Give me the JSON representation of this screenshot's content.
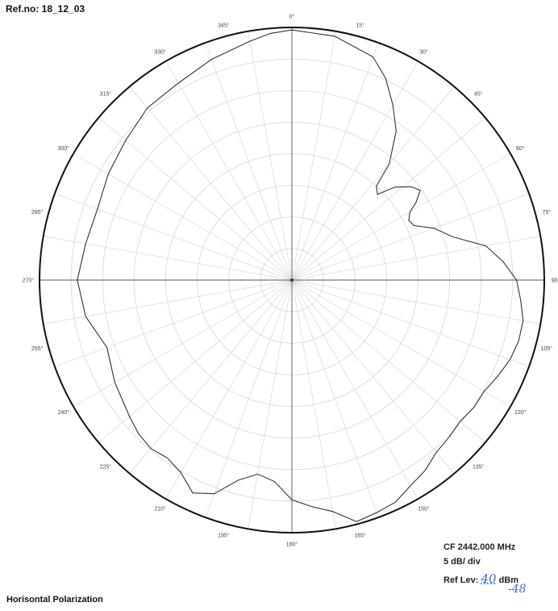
{
  "header": {
    "ref_label": "Ref.no: 18_12_03"
  },
  "info": {
    "cf": "CF  2442.000 MHz",
    "scale": "5 dB/ div",
    "ref_lev_label": "Ref Lev:",
    "ref_lev_value": "40",
    "ref_lev_unit": "dBm",
    "handwritten_note": "-48"
  },
  "footer": {
    "polarization": "Horisontal Polarization"
  },
  "chart_data": {
    "type": "polar",
    "title": "",
    "angle_unit": "deg",
    "scale_db_per_div": 5,
    "divisions": 8,
    "angle_ticks": [
      "0°",
      "15°",
      "30°",
      "45°",
      "60°",
      "75°",
      "90°",
      "105°",
      "120°",
      "135°",
      "150°",
      "165°",
      "180°",
      "195°",
      "210°",
      "225°",
      "240°",
      "255°",
      "270°",
      "285°",
      "300°",
      "315°",
      "330°",
      "345°"
    ],
    "series": [
      {
        "angles": [
          0,
          10,
          20,
          25,
          30,
          35,
          40,
          42,
          45,
          48,
          52,
          55,
          58,
          60,
          63,
          66,
          70,
          75,
          80,
          85,
          90,
          95,
          100,
          105,
          110,
          115,
          120,
          125,
          130,
          135,
          140,
          145,
          150,
          155,
          160,
          165,
          170,
          175,
          180,
          185,
          190,
          195,
          200,
          205,
          210,
          215,
          220,
          225,
          230,
          240,
          250,
          260,
          270,
          280,
          290,
          300,
          310,
          320,
          330,
          340,
          350,
          355
        ],
        "radius_norm": [
          0.99,
          0.98,
          0.94,
          0.88,
          0.8,
          0.72,
          0.6,
          0.5,
          0.48,
          0.55,
          0.6,
          0.62,
          0.58,
          0.54,
          0.52,
          0.53,
          0.6,
          0.66,
          0.78,
          0.84,
          0.89,
          0.91,
          0.93,
          0.93,
          0.92,
          0.9,
          0.88,
          0.88,
          0.87,
          0.88,
          0.89,
          0.92,
          0.94,
          0.97,
          0.98,
          0.99,
          0.93,
          0.9,
          0.87,
          0.8,
          0.78,
          0.82,
          0.9,
          0.93,
          0.88,
          0.86,
          0.87,
          0.86,
          0.84,
          0.81,
          0.78,
          0.83,
          0.85,
          0.83,
          0.82,
          0.84,
          0.86,
          0.89,
          0.9,
          0.93,
          0.96,
          0.98
        ]
      }
    ]
  }
}
